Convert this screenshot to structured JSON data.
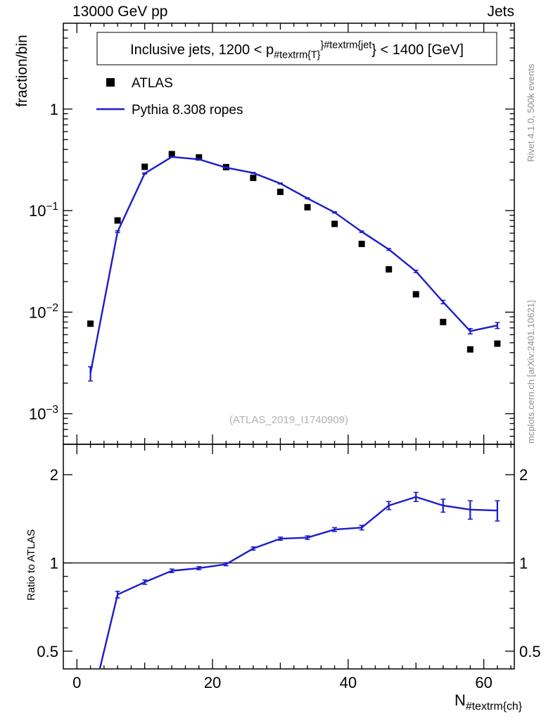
{
  "header": {
    "left": "13000 GeV pp",
    "right": "Jets"
  },
  "side_notes": {
    "right_top": "Rivet 4.1.0,  500k events",
    "right_bottom": "mcplots.cern.ch [arXiv:2401.10621]"
  },
  "colors": {
    "mc_line": "#1c1ccc",
    "data_marker": "#000000",
    "frame": "#000000",
    "note_text": "#8f8f8f",
    "watermark": "#b3b3b3"
  },
  "chart_data": {
    "type": "line",
    "title_segments": [
      {
        "t": "Inclusive jets, 1200 < p",
        "s": "n"
      },
      {
        "t": "#textrm{T}",
        "s": "sub"
      },
      {
        "t": "}#textrm{jet",
        "s": "sup"
      },
      {
        "t": "} < 1400 [GeV]",
        "s": "n"
      }
    ],
    "watermark": "(ATLAS_2019_I1740909)",
    "x_label_segments": [
      {
        "t": "N",
        "s": "n"
      },
      {
        "t": "#textrm{ch}",
        "s": "sub"
      }
    ],
    "xlim": [
      -2,
      64.5
    ],
    "xticks_labeled": [
      0,
      20,
      40,
      60
    ],
    "x": [
      2,
      6,
      10,
      14,
      18,
      22,
      26,
      30,
      34,
      38,
      42,
      46,
      50,
      54,
      58,
      62
    ],
    "main_panel": {
      "ylabel": "fraction/bin",
      "yscale": "log",
      "ylim": [
        0.0005,
        7
      ],
      "yticks": [
        {
          "v": 1,
          "label": "1"
        },
        {
          "v": 0.1,
          "label": "10^-1"
        },
        {
          "v": 0.01,
          "label": "10^-2"
        },
        {
          "v": 0.001,
          "label": "10^-3"
        }
      ],
      "series": [
        {
          "name": "ATLAS",
          "type": "marker",
          "marker": "square",
          "color": "#000000",
          "values": [
            0.0077,
            0.08,
            0.27,
            0.36,
            0.334,
            0.268,
            0.21,
            0.153,
            0.108,
            0.074,
            0.047,
            0.0264,
            0.015,
            0.008,
            0.0043,
            0.0049
          ]
        },
        {
          "name": "Pythia 8.308 ropes",
          "type": "line",
          "color": "#1c1ccc",
          "values": [
            0.0025,
            0.062,
            0.232,
            0.338,
            0.32,
            0.265,
            0.235,
            0.185,
            0.132,
            0.096,
            0.062,
            0.0415,
            0.0252,
            0.0126,
            0.0065,
            0.0074
          ],
          "errors": [
            0.0004,
            0.0012,
            0.003,
            0.0035,
            0.0033,
            0.0028,
            0.0026,
            0.0022,
            0.0017,
            0.0014,
            0.0011,
            0.0009,
            0.0007,
            0.0005,
            0.0004,
            0.0005
          ]
        }
      ]
    },
    "ratio_panel": {
      "ylabel": "Ratio to ATLAS",
      "yscale": "log",
      "ylim": [
        0.435,
        2.54
      ],
      "ref_value": 1,
      "yticks": [
        {
          "v": 0.5,
          "label": "0.5"
        },
        {
          "v": 1,
          "label": "1"
        },
        {
          "v": 2,
          "label": "2"
        }
      ],
      "series": [
        {
          "name": "Pythia 8.308 ropes / ATLAS",
          "type": "line",
          "color": "#1c1ccc",
          "values": [
            0.32,
            0.78,
            0.86,
            0.94,
            0.96,
            0.99,
            1.12,
            1.21,
            1.22,
            1.3,
            1.32,
            1.57,
            1.68,
            1.57,
            1.52,
            1.51
          ],
          "errors": [
            0.05,
            0.02,
            0.015,
            0.013,
            0.012,
            0.012,
            0.014,
            0.015,
            0.017,
            0.02,
            0.024,
            0.05,
            0.06,
            0.08,
            0.11,
            0.12
          ]
        }
      ]
    },
    "legend": [
      {
        "label": "ATLAS",
        "marker": "square",
        "color": "#000000"
      },
      {
        "label": "Pythia 8.308 ropes",
        "marker": "line",
        "color": "#1c1ccc"
      }
    ]
  }
}
